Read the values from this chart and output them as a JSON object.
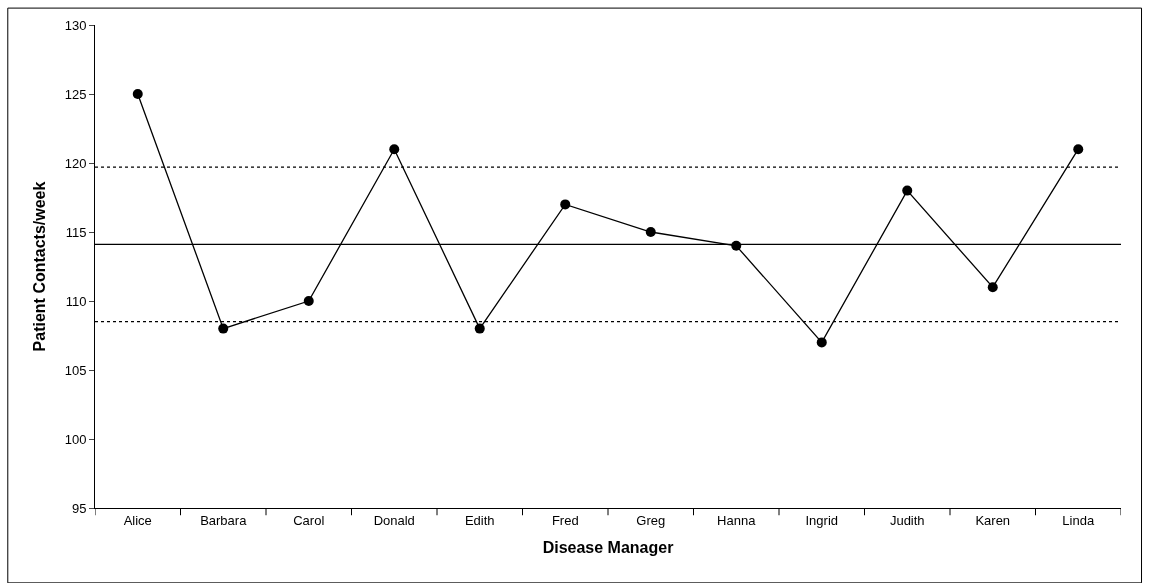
{
  "chart_data": {
    "type": "line",
    "xlabel": "Disease Manager",
    "ylabel": "Patient Contacts/week",
    "categories": [
      "Alice",
      "Barbara",
      "Carol",
      "Donald",
      "Edith",
      "Fred",
      "Greg",
      "Hanna",
      "Ingrid",
      "Judith",
      "Karen",
      "Linda"
    ],
    "series": [
      {
        "color": "#000000",
        "values": [
          125,
          108,
          110,
          121,
          108,
          117,
          115,
          114,
          107,
          118,
          111,
          121
        ]
      }
    ],
    "ylim": [
      95,
      130
    ],
    "yticks": [
      95,
      100,
      105,
      110,
      115,
      120,
      125,
      130
    ],
    "ref_lines": [
      {
        "axis": "y",
        "value": 119.7,
        "line_style": "dotted",
        "color": "#000000"
      },
      {
        "axis": "y",
        "value": 114.1,
        "line_style": "solid",
        "color": "#000000"
      },
      {
        "axis": "y",
        "value": 108.5,
        "line_style": "dotted",
        "color": "#000000"
      }
    ],
    "legend": false,
    "marker": "circle",
    "line_style": "solid"
  }
}
